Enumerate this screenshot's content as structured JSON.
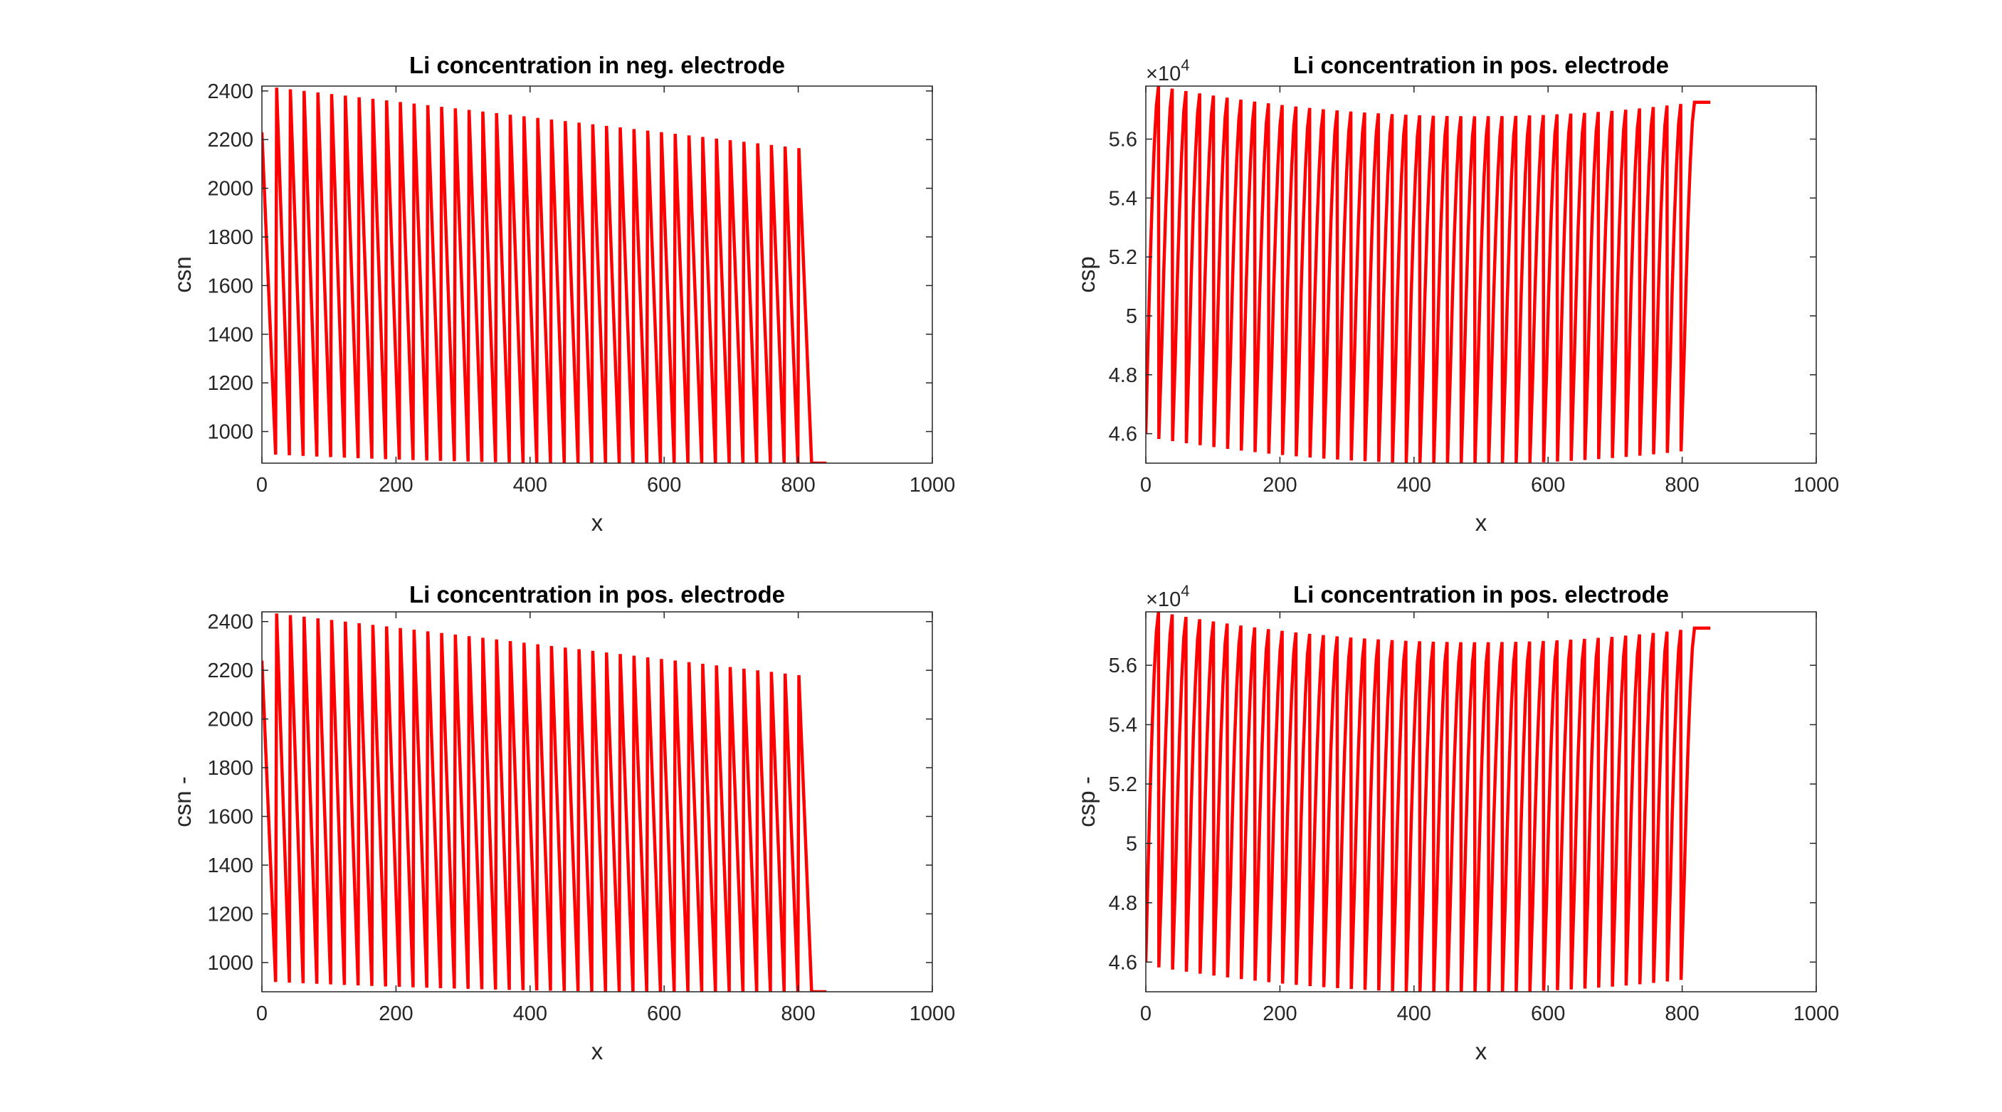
{
  "figure": {
    "background": "#ffffff",
    "line_color": "#ff0000",
    "axes_color": "#262626"
  },
  "chart_data": [
    {
      "type": "line",
      "title": "Li concentration in neg. electrode",
      "xlabel": "x",
      "ylabel": "csn",
      "xlim": [
        0,
        1000
      ],
      "ylim": [
        870,
        2420
      ],
      "xticks": [
        0,
        200,
        400,
        600,
        800,
        1000
      ],
      "yticks": [
        1000,
        1200,
        1400,
        1600,
        1800,
        2000,
        2200,
        2400
      ],
      "ytick_labels": [
        "1000",
        "1200",
        "1400",
        "1600",
        "1800",
        "2000",
        "2200",
        "2400"
      ],
      "exponent_label": "",
      "grid": false,
      "series": [
        {
          "color": "#ff0000",
          "pattern": "sawtooth",
          "cycles": 40,
          "period": 20.5,
          "x_end": 842,
          "y_start": 2230,
          "peak_start": 2420,
          "peak_end": 2165,
          "min_start": 905,
          "min_mid": 870,
          "min_end": 870,
          "final_y": 870
        }
      ]
    },
    {
      "type": "line",
      "title": "Li concentration in pos. electrode",
      "xlabel": "x",
      "ylabel": "csp",
      "xlim": [
        0,
        1000
      ],
      "ylim": [
        45000,
        57800
      ],
      "xticks": [
        0,
        200,
        400,
        600,
        800,
        1000
      ],
      "yticks": [
        46000,
        48000,
        50000,
        52000,
        54000,
        56000
      ],
      "ytick_labels": [
        "4.6",
        "4.8",
        "5",
        "5.2",
        "5.4",
        "5.6"
      ],
      "exponent_label": "×10",
      "exponent_power": "4",
      "grid": false,
      "series": [
        {
          "color": "#ff0000",
          "pattern": "rise-drop",
          "cycles": 40,
          "period": 20.5,
          "x_end": 842,
          "y_start": 46000,
          "peak_start": 57800,
          "peak_mid": 56800,
          "peak_end": 57250,
          "min_start": 45900,
          "min_mid": 45000,
          "min_end": 45400,
          "final_y": 57250
        }
      ]
    },
    {
      "type": "line",
      "title": "Li concentration in pos. electrode",
      "xlabel": "x",
      "ylabel": "csn -",
      "xlim": [
        0,
        1000
      ],
      "ylim": [
        880,
        2440
      ],
      "xticks": [
        0,
        200,
        400,
        600,
        800,
        1000
      ],
      "yticks": [
        1000,
        1200,
        1400,
        1600,
        1800,
        2000,
        2200,
        2400
      ],
      "ytick_labels": [
        "1000",
        "1200",
        "1400",
        "1600",
        "1800",
        "2000",
        "2200",
        "2400"
      ],
      "exponent_label": "",
      "grid": false,
      "series": [
        {
          "color": "#ff0000",
          "pattern": "sawtooth",
          "cycles": 40,
          "period": 20.5,
          "x_end": 842,
          "y_start": 2240,
          "peak_start": 2440,
          "peak_end": 2180,
          "min_start": 920,
          "min_mid": 885,
          "min_end": 880,
          "final_y": 880
        }
      ]
    },
    {
      "type": "line",
      "title": "Li concentration in pos. electrode",
      "xlabel": "x",
      "ylabel": "csp -",
      "xlim": [
        0,
        1000
      ],
      "ylim": [
        45000,
        57800
      ],
      "xticks": [
        0,
        200,
        400,
        600,
        800,
        1000
      ],
      "yticks": [
        46000,
        48000,
        50000,
        52000,
        54000,
        56000
      ],
      "ytick_labels": [
        "4.6",
        "4.8",
        "5",
        "5.2",
        "5.4",
        "5.6"
      ],
      "exponent_label": "×10",
      "exponent_power": "4",
      "grid": false,
      "series": [
        {
          "color": "#ff0000",
          "pattern": "rise-drop",
          "cycles": 40,
          "period": 20.5,
          "x_end": 842,
          "y_start": 46000,
          "peak_start": 57800,
          "peak_mid": 56800,
          "peak_end": 57250,
          "min_start": 45900,
          "min_mid": 45000,
          "min_end": 45400,
          "final_y": 57250
        }
      ]
    }
  ]
}
